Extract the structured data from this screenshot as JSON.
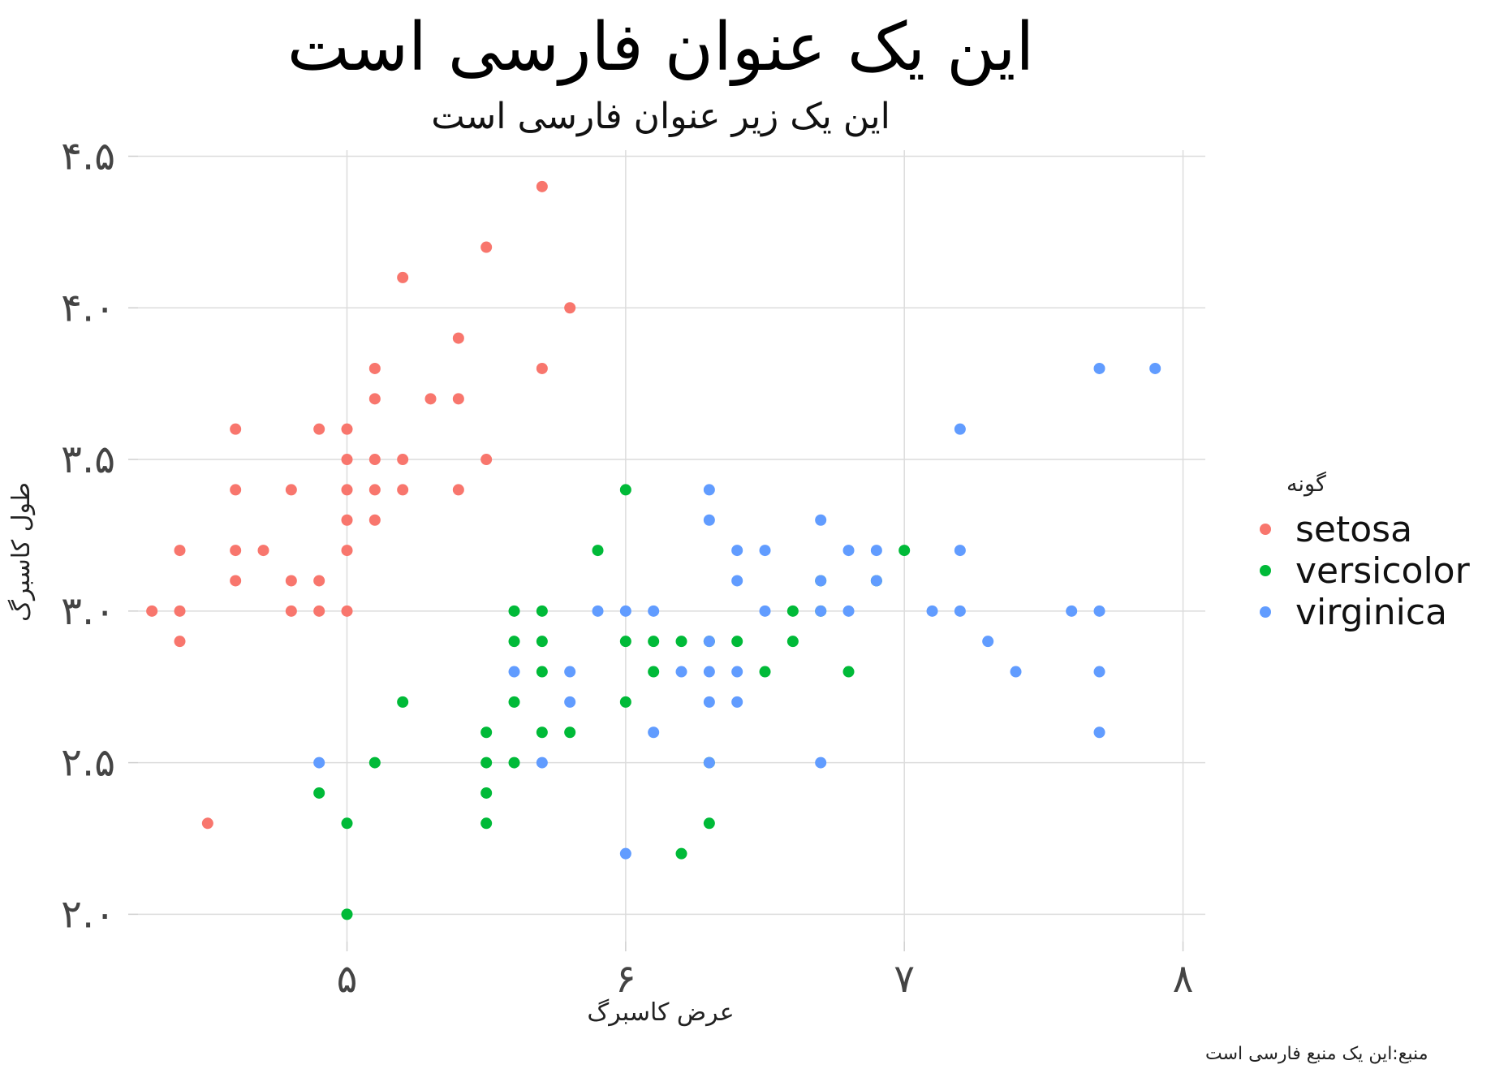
{
  "chart_data": {
    "type": "scatter",
    "title": "این یک عنوان فارسی است",
    "subtitle": "این یک زیر عنوان فارسی است",
    "xlabel": "عرض کاسبرگ",
    "ylabel": "طول کاسبرگ",
    "caption": "منبع:این یک منبع فارسی است",
    "xlim": [
      4.25,
      8.08
    ],
    "ylim": [
      1.91,
      4.52
    ],
    "x_ticks": [
      {
        "value": 5,
        "label": "۵"
      },
      {
        "value": 6,
        "label": "۶"
      },
      {
        "value": 7,
        "label": "۷"
      },
      {
        "value": 8,
        "label": "۸"
      }
    ],
    "y_ticks": [
      {
        "value": 2.0,
        "label": "۲.۰"
      },
      {
        "value": 2.5,
        "label": "۲.۵"
      },
      {
        "value": 3.0,
        "label": "۳.۰"
      },
      {
        "value": 3.5,
        "label": "۳.۵"
      },
      {
        "value": 4.0,
        "label": "۴.۰"
      },
      {
        "value": 4.5,
        "label": "۴.۵"
      }
    ],
    "grid": true,
    "legend": {
      "title": "گونه",
      "position": "right"
    },
    "series": [
      {
        "name": "setosa",
        "color": "#F8766D",
        "points": [
          [
            4.3,
            3.0
          ],
          [
            4.4,
            2.9
          ],
          [
            4.4,
            3.0
          ],
          [
            4.4,
            3.2
          ],
          [
            4.5,
            2.3
          ],
          [
            4.6,
            3.1
          ],
          [
            4.6,
            3.2
          ],
          [
            4.6,
            3.4
          ],
          [
            4.6,
            3.6
          ],
          [
            4.7,
            3.2
          ],
          [
            4.8,
            3.0
          ],
          [
            4.8,
            3.1
          ],
          [
            4.8,
            3.4
          ],
          [
            4.9,
            3.0
          ],
          [
            4.9,
            3.1
          ],
          [
            4.9,
            3.6
          ],
          [
            5.0,
            3.0
          ],
          [
            5.0,
            3.2
          ],
          [
            5.0,
            3.3
          ],
          [
            5.0,
            3.4
          ],
          [
            5.0,
            3.5
          ],
          [
            5.0,
            3.6
          ],
          [
            5.1,
            3.3
          ],
          [
            5.1,
            3.4
          ],
          [
            5.1,
            3.5
          ],
          [
            5.1,
            3.7
          ],
          [
            5.1,
            3.8
          ],
          [
            5.2,
            3.4
          ],
          [
            5.2,
            3.5
          ],
          [
            5.2,
            4.1
          ],
          [
            5.3,
            3.7
          ],
          [
            5.4,
            3.4
          ],
          [
            5.4,
            3.7
          ],
          [
            5.4,
            3.9
          ],
          [
            5.5,
            3.5
          ],
          [
            5.5,
            4.2
          ],
          [
            5.7,
            3.8
          ],
          [
            5.7,
            4.4
          ],
          [
            5.8,
            4.0
          ]
        ]
      },
      {
        "name": "versicolor",
        "color": "#00BA38",
        "points": [
          [
            4.9,
            2.4
          ],
          [
            5.0,
            2.0
          ],
          [
            5.0,
            2.3
          ],
          [
            5.1,
            2.5
          ],
          [
            5.2,
            2.7
          ],
          [
            5.5,
            2.3
          ],
          [
            5.5,
            2.4
          ],
          [
            5.5,
            2.5
          ],
          [
            5.5,
            2.6
          ],
          [
            5.6,
            2.5
          ],
          [
            5.6,
            2.7
          ],
          [
            5.6,
            2.9
          ],
          [
            5.6,
            3.0
          ],
          [
            5.7,
            2.6
          ],
          [
            5.7,
            2.8
          ],
          [
            5.7,
            2.9
          ],
          [
            5.7,
            3.0
          ],
          [
            5.8,
            2.6
          ],
          [
            5.9,
            3.2
          ],
          [
            6.0,
            2.7
          ],
          [
            6.0,
            2.9
          ],
          [
            6.0,
            3.4
          ],
          [
            6.1,
            2.8
          ],
          [
            6.1,
            2.9
          ],
          [
            6.2,
            2.2
          ],
          [
            6.2,
            2.9
          ],
          [
            6.3,
            2.3
          ],
          [
            6.3,
            2.5
          ],
          [
            6.3,
            2.9
          ],
          [
            6.4,
            2.9
          ],
          [
            6.5,
            2.8
          ],
          [
            6.6,
            2.9
          ],
          [
            6.6,
            3.0
          ],
          [
            6.7,
            3.0
          ],
          [
            6.7,
            3.1
          ],
          [
            6.8,
            2.8
          ],
          [
            6.9,
            3.1
          ],
          [
            7.0,
            3.2
          ]
        ]
      },
      {
        "name": "virginica",
        "color": "#619CFF",
        "points": [
          [
            4.9,
            2.5
          ],
          [
            5.6,
            2.8
          ],
          [
            5.7,
            2.5
          ],
          [
            5.8,
            2.7
          ],
          [
            5.8,
            2.8
          ],
          [
            5.9,
            3.0
          ],
          [
            6.0,
            2.2
          ],
          [
            6.0,
            3.0
          ],
          [
            6.1,
            2.6
          ],
          [
            6.1,
            3.0
          ],
          [
            6.2,
            2.8
          ],
          [
            6.3,
            2.8
          ],
          [
            6.3,
            3.4
          ],
          [
            6.3,
            2.5
          ],
          [
            6.3,
            2.7
          ],
          [
            6.3,
            2.9
          ],
          [
            6.3,
            3.3
          ],
          [
            6.4,
            2.7
          ],
          [
            6.4,
            2.8
          ],
          [
            6.4,
            3.1
          ],
          [
            6.4,
            3.2
          ],
          [
            6.5,
            3.0
          ],
          [
            6.5,
            3.2
          ],
          [
            6.7,
            2.5
          ],
          [
            6.7,
            3.0
          ],
          [
            6.7,
            3.1
          ],
          [
            6.7,
            3.3
          ],
          [
            6.8,
            3.0
          ],
          [
            6.8,
            3.2
          ],
          [
            6.9,
            3.1
          ],
          [
            6.9,
            3.2
          ],
          [
            7.1,
            3.0
          ],
          [
            7.2,
            3.0
          ],
          [
            7.2,
            3.2
          ],
          [
            7.2,
            3.6
          ],
          [
            7.3,
            2.9
          ],
          [
            7.4,
            2.8
          ],
          [
            7.6,
            3.0
          ],
          [
            7.7,
            2.6
          ],
          [
            7.7,
            2.8
          ],
          [
            7.7,
            3.0
          ],
          [
            7.7,
            3.8
          ],
          [
            7.9,
            3.8
          ]
        ]
      }
    ]
  }
}
